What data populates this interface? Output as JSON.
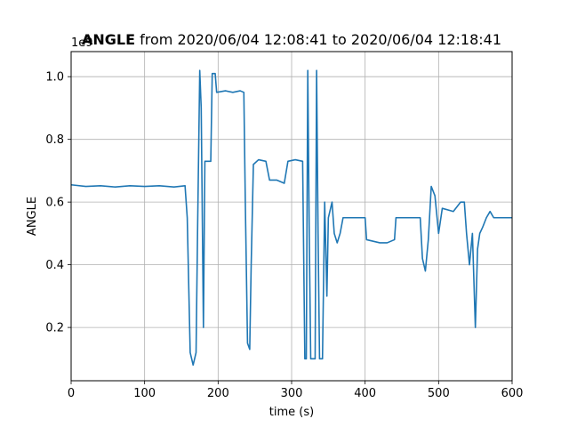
{
  "chart_data": {
    "type": "line",
    "title_bold": "ANGLE",
    "title_rest": " from 2020/06/04 12:08:41 to 2020/06/04 12:18:41",
    "xlabel": "time (s)",
    "ylabel": "ANGLE",
    "y_offset_text": "1e9",
    "xlim": [
      0,
      600
    ],
    "ylim": [
      0.03,
      1.08
    ],
    "xticks": [
      0,
      100,
      200,
      300,
      400,
      500,
      600
    ],
    "xtick_labels": [
      "0",
      "100",
      "200",
      "300",
      "400",
      "500",
      "600"
    ],
    "yticks": [
      0.2,
      0.4,
      0.6,
      0.8,
      1.0
    ],
    "ytick_labels": [
      "0.2",
      "0.4",
      "0.6",
      "0.8",
      "1.0"
    ],
    "grid": true,
    "color": "#1f77b4",
    "series": [
      {
        "points": [
          [
            0,
            0.655
          ],
          [
            20,
            0.65
          ],
          [
            40,
            0.652
          ],
          [
            60,
            0.648
          ],
          [
            80,
            0.652
          ],
          [
            100,
            0.65
          ],
          [
            120,
            0.652
          ],
          [
            140,
            0.648
          ],
          [
            155,
            0.652
          ],
          [
            158,
            0.55
          ],
          [
            162,
            0.12
          ],
          [
            166,
            0.08
          ],
          [
            170,
            0.12
          ],
          [
            172,
            0.5
          ],
          [
            175,
            1.02
          ],
          [
            177,
            0.9
          ],
          [
            180,
            0.2
          ],
          [
            182,
            0.73
          ],
          [
            186,
            0.73
          ],
          [
            190,
            0.73
          ],
          [
            192,
            1.01
          ],
          [
            196,
            1.01
          ],
          [
            198,
            0.95
          ],
          [
            210,
            0.955
          ],
          [
            220,
            0.95
          ],
          [
            230,
            0.955
          ],
          [
            235,
            0.95
          ],
          [
            237,
            0.6
          ],
          [
            240,
            0.15
          ],
          [
            243,
            0.13
          ],
          [
            245,
            0.4
          ],
          [
            248,
            0.72
          ],
          [
            255,
            0.735
          ],
          [
            265,
            0.73
          ],
          [
            270,
            0.67
          ],
          [
            280,
            0.67
          ],
          [
            290,
            0.66
          ],
          [
            295,
            0.73
          ],
          [
            305,
            0.735
          ],
          [
            315,
            0.73
          ],
          [
            318,
            0.1
          ],
          [
            320,
            0.1
          ],
          [
            322,
            1.02
          ],
          [
            324,
            0.5
          ],
          [
            326,
            0.1
          ],
          [
            332,
            0.1
          ],
          [
            334,
            1.02
          ],
          [
            336,
            0.5
          ],
          [
            338,
            0.1
          ],
          [
            342,
            0.1
          ],
          [
            345,
            0.6
          ],
          [
            348,
            0.3
          ],
          [
            350,
            0.55
          ],
          [
            355,
            0.6
          ],
          [
            358,
            0.5
          ],
          [
            362,
            0.47
          ],
          [
            366,
            0.5
          ],
          [
            370,
            0.55
          ],
          [
            380,
            0.55
          ],
          [
            390,
            0.55
          ],
          [
            400,
            0.55
          ],
          [
            402,
            0.48
          ],
          [
            420,
            0.47
          ],
          [
            430,
            0.47
          ],
          [
            440,
            0.48
          ],
          [
            442,
            0.55
          ],
          [
            460,
            0.55
          ],
          [
            470,
            0.55
          ],
          [
            475,
            0.55
          ],
          [
            478,
            0.42
          ],
          [
            482,
            0.38
          ],
          [
            486,
            0.48
          ],
          [
            490,
            0.65
          ],
          [
            495,
            0.62
          ],
          [
            500,
            0.5
          ],
          [
            505,
            0.58
          ],
          [
            520,
            0.57
          ],
          [
            530,
            0.6
          ],
          [
            535,
            0.6
          ],
          [
            538,
            0.5
          ],
          [
            542,
            0.4
          ],
          [
            546,
            0.5
          ],
          [
            550,
            0.2
          ],
          [
            553,
            0.45
          ],
          [
            556,
            0.5
          ],
          [
            560,
            0.52
          ],
          [
            565,
            0.55
          ],
          [
            570,
            0.57
          ],
          [
            575,
            0.55
          ],
          [
            580,
            0.55
          ],
          [
            590,
            0.55
          ],
          [
            600,
            0.55
          ]
        ]
      }
    ]
  }
}
